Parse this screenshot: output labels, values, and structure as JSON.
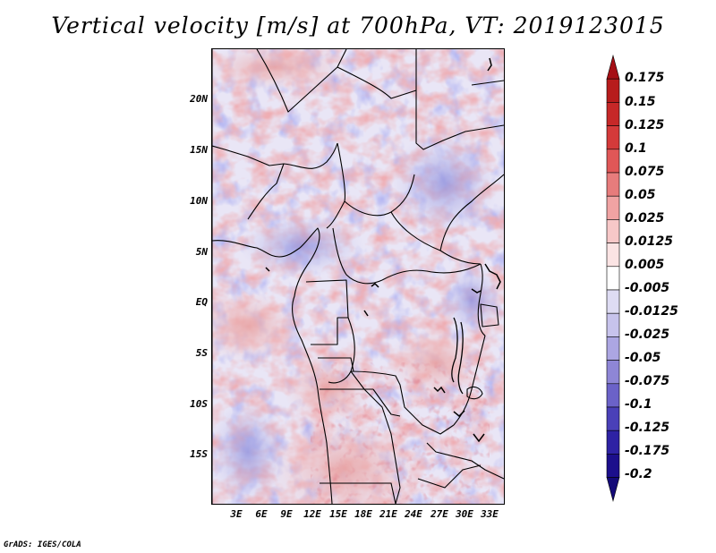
{
  "title": "Vertical velocity [m/s] at 700hPa, VT: 2019123015",
  "latitude_labels": [
    "20N",
    "15N",
    "10N",
    "5N",
    "EQ",
    "5S",
    "10S",
    "15S"
  ],
  "latitude_values": [
    20,
    15,
    10,
    5,
    0,
    -5,
    -10,
    -15
  ],
  "longitude_labels": [
    "3E",
    "6E",
    "9E",
    "12E",
    "15E",
    "18E",
    "21E",
    "24E",
    "27E",
    "30E",
    "33E"
  ],
  "longitude_values": [
    3,
    6,
    9,
    12,
    15,
    18,
    21,
    24,
    27,
    30,
    33
  ],
  "map_extent": {
    "lon_min": 0,
    "lon_max": 34,
    "lat_min": -20,
    "lat_max": 24.5
  },
  "colorbar": {
    "labels": [
      "0.175",
      "0.15",
      "0.125",
      "0.1",
      "0.075",
      "0.05",
      "0.025",
      "0.0125",
      "0.005",
      "-0.005",
      "-0.0125",
      "-0.025",
      "-0.05",
      "-0.075",
      "-0.1",
      "-0.125",
      "-0.175",
      "-0.2"
    ],
    "colors": [
      "#a50f15",
      "#b71c1c",
      "#c62828",
      "#d43a3a",
      "#e05757",
      "#e77c7c",
      "#f0a3a3",
      "#f7c8c8",
      "#fbe4e4",
      "#ffffff",
      "#dedcf3",
      "#c7c3ec",
      "#aca6e2",
      "#8e86d6",
      "#6b62c8",
      "#4a40b8",
      "#2e22a4",
      "#1c0f8c",
      "#140a78"
    ]
  },
  "credit": "GrADS: IGES/COLA"
}
